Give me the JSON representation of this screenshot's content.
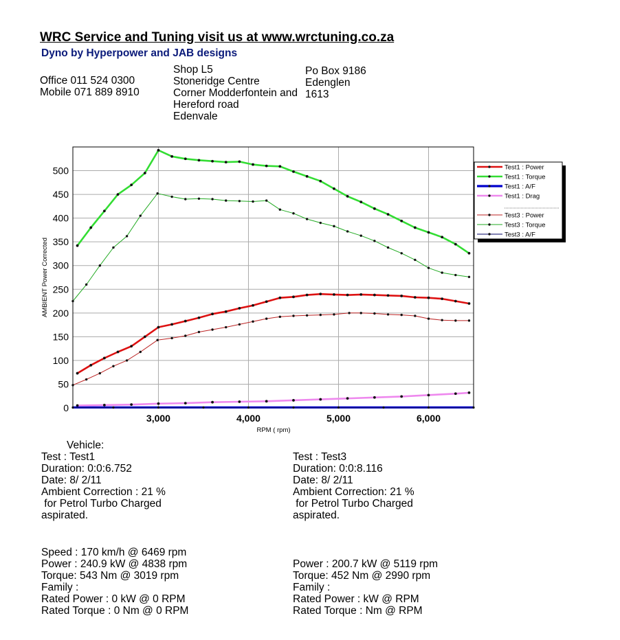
{
  "header": {
    "title": "WRC Service and Tuning visit us at www.wrctuning.co.za",
    "subtitle": "Dyno by Hyperpower and JAB designs",
    "office": "Office 011 524 0300",
    "mobile": "Mobile 071 889 8910",
    "address_lines": [
      "Shop L5",
      "Stoneridge Centre",
      "Corner Modderfontein and",
      "Hereford road",
      "Edenvale"
    ],
    "postal_lines": [
      "Po Box 9186",
      "Edenglen",
      "1613"
    ]
  },
  "colors": {
    "power1": "#dd1111",
    "torque1": "#33dd33",
    "af1": "#0000cc",
    "drag1": "#ee88ee",
    "power3": "#bb2222",
    "torque3": "#22aa22",
    "af3": "#000066",
    "grid": "#aaaaaa"
  },
  "chart_data": {
    "type": "line",
    "ylabel": "AMBIENT Power Corrected",
    "xlabel": "RPM ( rpm)",
    "xlim": [
      2050,
      6500
    ],
    "ylim": [
      0,
      550
    ],
    "x_ticks": [
      3000,
      4000,
      5000,
      6000
    ],
    "x_tick_labels": [
      "3,000",
      "4,000",
      "5,000",
      "6,000"
    ],
    "y_ticks": [
      0,
      50,
      100,
      150,
      200,
      250,
      300,
      350,
      400,
      450,
      500
    ],
    "y_tick_labels": [
      "0",
      "50",
      "100",
      "150",
      "200",
      "250",
      "300",
      "350",
      "400",
      "450",
      "500"
    ],
    "series": [
      {
        "name": "Test1 : Power",
        "key": "p1",
        "x": [
          2100,
          2250,
          2400,
          2550,
          2700,
          2850,
          3000,
          3150,
          3300,
          3450,
          3600,
          3750,
          3900,
          4050,
          4200,
          4350,
          4500,
          4650,
          4800,
          4950,
          5100,
          5250,
          5400,
          5550,
          5700,
          5850,
          6000,
          6150,
          6300,
          6450
        ],
        "y": [
          73,
          90,
          105,
          118,
          130,
          150,
          170,
          176,
          183,
          190,
          198,
          203,
          210,
          216,
          224,
          232,
          234,
          238,
          240,
          239,
          238,
          239,
          238,
          237,
          236,
          233,
          232,
          230,
          225,
          220
        ]
      },
      {
        "name": "Test1 : Torque",
        "key": "t1",
        "x": [
          2100,
          2250,
          2400,
          2550,
          2700,
          2850,
          3000,
          3150,
          3300,
          3450,
          3600,
          3750,
          3900,
          4050,
          4200,
          4350,
          4500,
          4650,
          4800,
          4950,
          5100,
          5250,
          5400,
          5550,
          5700,
          5850,
          6000,
          6150,
          6300,
          6450
        ],
        "y": [
          342,
          380,
          415,
          450,
          470,
          495,
          543,
          530,
          525,
          522,
          520,
          518,
          519,
          513,
          510,
          509,
          498,
          488,
          478,
          462,
          446,
          434,
          420,
          408,
          394,
          380,
          370,
          360,
          345,
          326
        ]
      },
      {
        "name": "Test1 : A/F",
        "key": "af1",
        "x": [
          2050,
          2500,
          3000,
          3500,
          4000,
          4500,
          5000,
          5500,
          6000,
          6500
        ],
        "y": [
          1,
          1,
          1,
          1,
          1,
          1,
          1,
          1,
          1,
          1
        ]
      },
      {
        "name": "Test1 : Drag",
        "key": "d1",
        "x": [
          2100,
          2400,
          2700,
          3000,
          3300,
          3600,
          3900,
          4200,
          4500,
          4800,
          5100,
          5400,
          5700,
          6000,
          6300,
          6450
        ],
        "y": [
          5,
          6,
          7,
          9,
          10,
          12,
          13,
          14,
          16,
          18,
          20,
          22,
          24,
          27,
          30,
          32
        ]
      },
      {
        "name": "Test3 : Power",
        "key": "p3",
        "x": [
          2050,
          2200,
          2350,
          2500,
          2650,
          2800,
          2990,
          3150,
          3300,
          3450,
          3600,
          3750,
          3900,
          4050,
          4200,
          4350,
          4500,
          4650,
          4800,
          4950,
          5119,
          5250,
          5400,
          5550,
          5700,
          5850,
          6000,
          6150,
          6300,
          6450
        ],
        "y": [
          48,
          60,
          73,
          88,
          100,
          118,
          143,
          147,
          152,
          160,
          165,
          170,
          176,
          182,
          188,
          192,
          194,
          195,
          196,
          197,
          200,
          200,
          199,
          197,
          196,
          194,
          188,
          185,
          184,
          184
        ]
      },
      {
        "name": "Test3 : Torque",
        "key": "t3",
        "x": [
          2050,
          2200,
          2350,
          2500,
          2650,
          2800,
          2990,
          3150,
          3300,
          3450,
          3600,
          3750,
          3900,
          4050,
          4200,
          4350,
          4500,
          4650,
          4800,
          4950,
          5100,
          5250,
          5400,
          5550,
          5700,
          5850,
          6000,
          6150,
          6300,
          6450
        ],
        "y": [
          225,
          260,
          300,
          338,
          362,
          405,
          452,
          445,
          440,
          441,
          440,
          437,
          436,
          435,
          437,
          418,
          410,
          398,
          390,
          383,
          372,
          363,
          352,
          338,
          326,
          312,
          295,
          285,
          280,
          276
        ]
      },
      {
        "name": "Test3 : A/F",
        "key": "af3",
        "x": [
          2050,
          2500,
          3000,
          3500,
          4000,
          4500,
          5000,
          5500,
          6000,
          6500
        ],
        "y": [
          0.5,
          0.5,
          0.5,
          0.5,
          0.5,
          0.5,
          0.5,
          0.5,
          0.5,
          0.5
        ]
      }
    ]
  },
  "results": {
    "left_top": [
      "Vehicle:",
      "Test    : Test1",
      "Duration: 0:0:6.752",
      "Date:  8/ 2/11",
      "Ambient Correction : 21 %",
      " for Petrol Turbo Charged",
      "aspirated."
    ],
    "right_top": [
      "Test    : Test3",
      "Duration: 0:0:8.116",
      "Date:  8/ 2/11",
      "Ambient Correction: 21 %",
      " for Petrol Turbo Charged",
      "aspirated."
    ],
    "left_bottom": [
      "Speed : 170 km/h @ 6469 rpm",
      "Power : 240.9 kW @ 4838 rpm",
      "Torque: 543 Nm @ 3019 rpm",
      "Family :",
      "Rated Power : 0 kW @ 0 RPM",
      "Rated Torque : 0 Nm @ 0 RPM"
    ],
    "right_bottom": [
      "Power : 200.7 kW @ 5119 rpm",
      "Torque: 452 Nm @ 2990 rpm",
      "Family :",
      "Rated Power :  kW @  RPM",
      "Rated Torque :  Nm @  RPM"
    ]
  }
}
